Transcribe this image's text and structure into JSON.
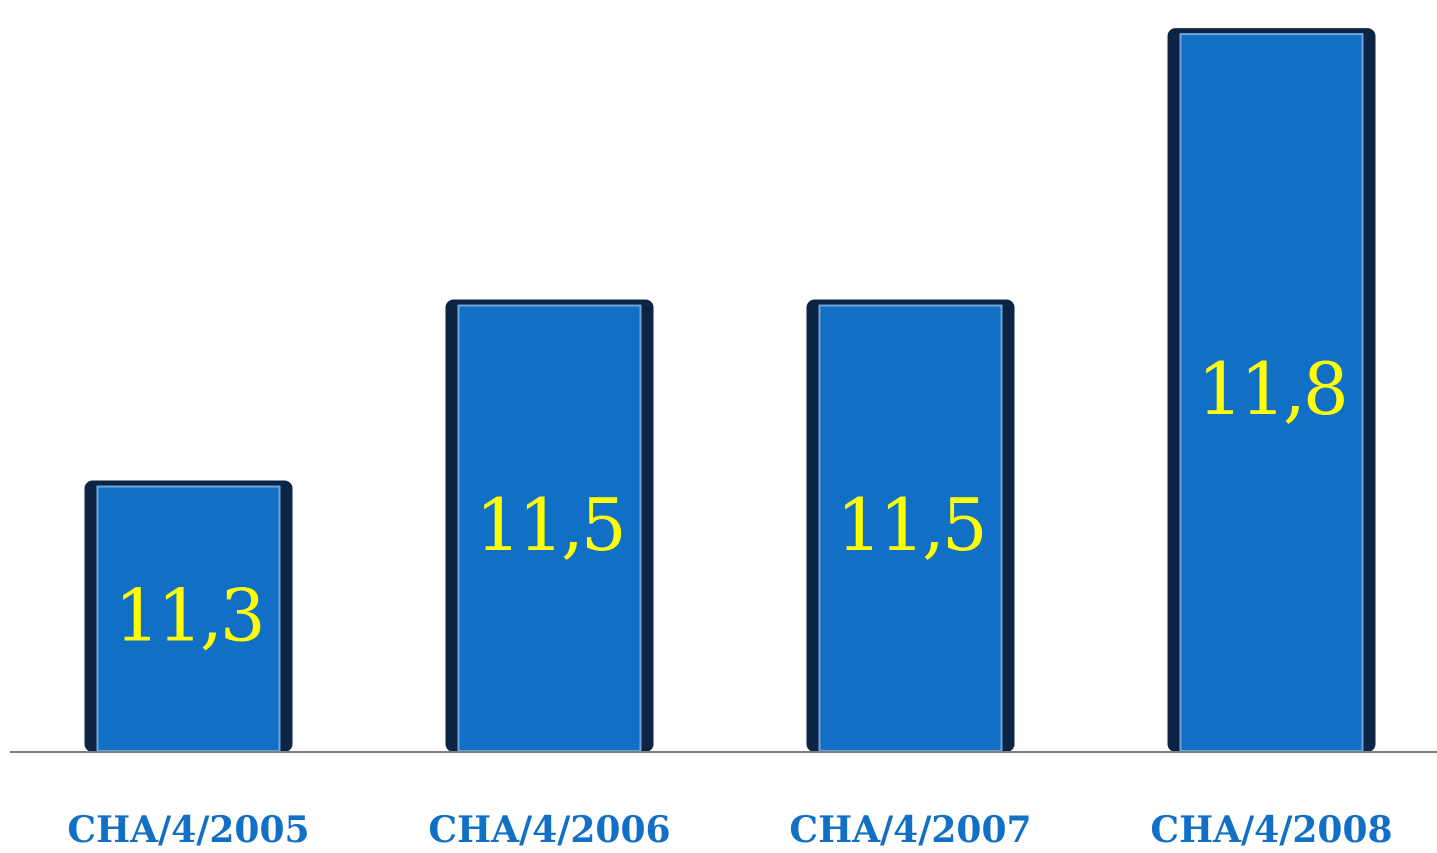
{
  "chart_data": {
    "type": "bar",
    "categories": [
      "CHA/4/2005",
      "CHA/4/2006",
      "CHA/4/2007",
      "CHA/4/2008"
    ],
    "values": [
      11.3,
      11.5,
      11.5,
      11.8
    ],
    "value_labels": [
      "11,3",
      "11,5",
      "11,5",
      "11,8"
    ],
    "title": "",
    "xlabel": "",
    "ylabel": "",
    "ylim": [
      11.0,
      11.82
    ],
    "grid": false,
    "legend": "none",
    "colors": {
      "bar": "#1170c6",
      "bar_edge": "#0d2444",
      "value_label": "#ffff00",
      "category_label": "#1170c6",
      "axis": "#7f7f7f"
    }
  }
}
